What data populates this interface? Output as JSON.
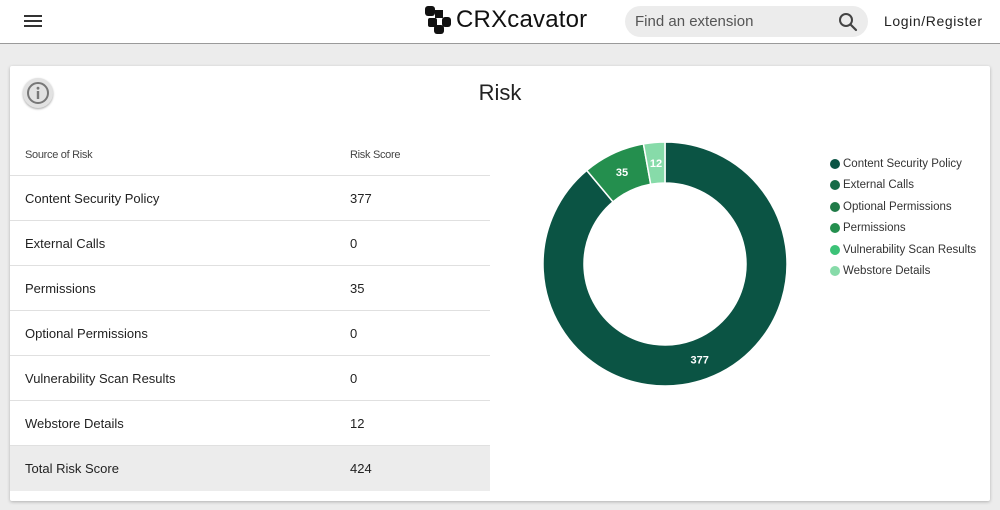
{
  "header": {
    "app_name": "CRXcavator",
    "search_placeholder": "Find an extension",
    "login_label": "Login/Register"
  },
  "card": {
    "title": "Risk",
    "table": {
      "headers": [
        "Source of Risk",
        "Risk Score"
      ],
      "rows": [
        {
          "source": "Content Security Policy",
          "score": "377"
        },
        {
          "source": "External Calls",
          "score": "0"
        },
        {
          "source": "Permissions",
          "score": "35"
        },
        {
          "source": "Optional Permissions",
          "score": "0"
        },
        {
          "source": "Vulnerability Scan Results",
          "score": "0"
        },
        {
          "source": "Webstore Details",
          "score": "12"
        }
      ],
      "total": {
        "label": "Total Risk Score",
        "score": "424"
      }
    }
  },
  "chart_data": {
    "type": "pie",
    "categories": [
      "Content Security Policy",
      "External Calls",
      "Optional Permissions",
      "Permissions",
      "Vulnerability Scan Results",
      "Webstore Details"
    ],
    "values": [
      377,
      0,
      0,
      35,
      0,
      12
    ],
    "colors": [
      "#0b5444",
      "#166b47",
      "#1f7a47",
      "#248f4e",
      "#3cc277",
      "#87dba9"
    ],
    "slice_labels": [
      "377",
      "",
      "",
      "35",
      "",
      "12"
    ],
    "legend_position": "right",
    "donut": true
  },
  "icons": {
    "menu": "hamburger-menu-icon",
    "logo": "crxcavator-logo-icon",
    "search": "search-icon",
    "info": "info-icon"
  }
}
